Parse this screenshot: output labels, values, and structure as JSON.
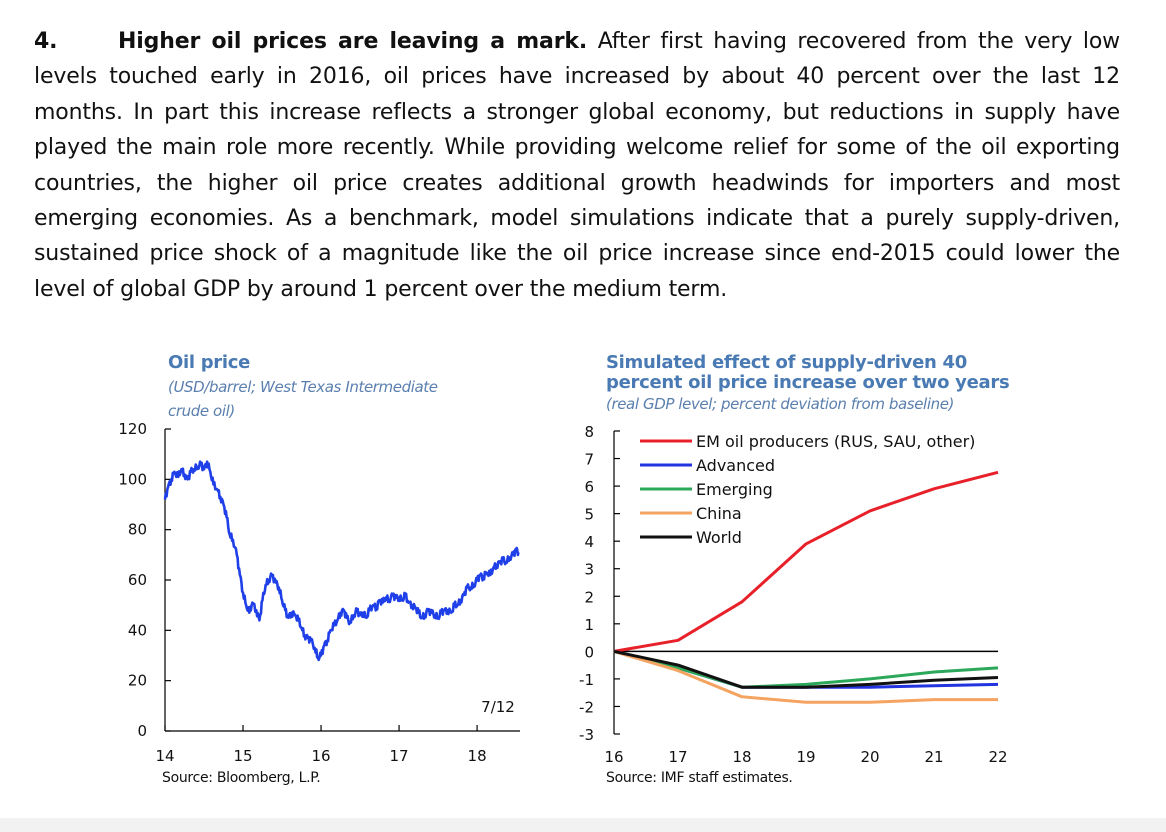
{
  "paragraph": {
    "number": "4.",
    "lead": "Higher oil prices are leaving a mark.",
    "body": "After first having recovered from the very low levels touched early in 2016, oil prices have increased by about 40 percent over the last 12 months. In part this increase reflects a stronger global economy, but reductions in supply have played the main role more recently. While providing welcome relief for some of the oil exporting countries, the higher oil price creates additional growth headwinds for importers and most emerging economies. As a benchmark, model simulations indicate that a purely supply-driven, sustained price shock of a magnitude like the oil price increase since end-2015 could lower the level of global GDP by around 1 percent over the medium term."
  },
  "chart_data": [
    {
      "type": "line",
      "title": "Oil price",
      "subtitle": "(USD/barrel; West Texas Intermediate crude oil)",
      "subtitle_lines": [
        "(USD/barrel; West Texas Intermediate",
        "crude oil)"
      ],
      "source": "Source: Bloomberg, L.P.",
      "annotation": "7/12",
      "xlabel": "",
      "ylabel": "",
      "x_ticks": [
        "14",
        "15",
        "16",
        "17",
        "18"
      ],
      "y_ticks": [
        "0",
        "20",
        "40",
        "60",
        "80",
        "100",
        "120"
      ],
      "xlim": [
        14.0,
        18.55
      ],
      "ylim": [
        0,
        120
      ],
      "color": "#1f3fe8",
      "series": [
        {
          "name": "WTI crude oil",
          "x": [
            14.0,
            14.04,
            14.08,
            14.12,
            14.17,
            14.21,
            14.25,
            14.29,
            14.33,
            14.37,
            14.42,
            14.46,
            14.5,
            14.54,
            14.58,
            14.62,
            14.67,
            14.71,
            14.75,
            14.79,
            14.83,
            14.87,
            14.92,
            14.96,
            15.0,
            15.04,
            15.08,
            15.12,
            15.17,
            15.21,
            15.25,
            15.29,
            15.33,
            15.37,
            15.42,
            15.46,
            15.5,
            15.54,
            15.58,
            15.62,
            15.67,
            15.71,
            15.75,
            15.79,
            15.83,
            15.87,
            15.92,
            15.96,
            16.0,
            16.04,
            16.08,
            16.12,
            16.17,
            16.21,
            16.25,
            16.29,
            16.33,
            16.37,
            16.42,
            16.46,
            16.5,
            16.54,
            16.58,
            16.62,
            16.67,
            16.71,
            16.75,
            16.79,
            16.83,
            16.87,
            16.92,
            16.96,
            17.0,
            17.04,
            17.08,
            17.12,
            17.17,
            17.21,
            17.25,
            17.29,
            17.33,
            17.37,
            17.42,
            17.46,
            17.5,
            17.54,
            17.58,
            17.62,
            17.67,
            17.71,
            17.75,
            17.79,
            17.83,
            17.87,
            17.92,
            17.96,
            18.0,
            18.04,
            18.08,
            18.12,
            18.17,
            18.21,
            18.25,
            18.29,
            18.33,
            18.37,
            18.42,
            18.46,
            18.5,
            18.53
          ],
          "values": [
            92,
            97,
            100,
            103,
            101,
            104,
            102,
            100,
            103,
            104,
            105,
            106,
            104,
            107,
            103,
            98,
            96,
            93,
            90,
            85,
            78,
            76,
            70,
            62,
            55,
            50,
            47,
            51,
            48,
            44,
            52,
            58,
            60,
            62,
            59,
            57,
            52,
            48,
            45,
            47,
            46,
            44,
            41,
            38,
            37,
            36,
            33,
            29,
            30,
            34,
            36,
            40,
            42,
            44,
            47,
            48,
            45,
            43,
            46,
            48,
            46,
            47,
            45,
            48,
            50,
            49,
            52,
            51,
            53,
            52,
            54,
            53,
            53,
            52,
            54,
            51,
            50,
            49,
            47,
            45,
            46,
            48,
            47,
            46,
            45,
            47,
            48,
            48,
            47,
            50,
            50,
            52,
            54,
            57,
            57,
            58,
            60,
            62,
            61,
            63,
            62,
            65,
            66,
            67,
            68,
            67,
            69,
            70,
            72,
            71
          ]
        }
      ]
    },
    {
      "type": "line",
      "title": "Simulated effect of supply-driven 40 percent oil price increase over two years",
      "title_lines": [
        "Simulated effect of supply-driven  40",
        "percent oil price increase over two years"
      ],
      "subtitle": "(real GDP level; percent deviation from baseline)",
      "source": "Source: IMF staff estimates.",
      "xlabel": "",
      "ylabel": "",
      "x": [
        16,
        17,
        18,
        19,
        20,
        21,
        22
      ],
      "x_ticks": [
        "16",
        "17",
        "18",
        "19",
        "20",
        "21",
        "22"
      ],
      "y_ticks": [
        "-3",
        "-2",
        "-1",
        "0",
        "1",
        "2",
        "3",
        "4",
        "5",
        "6",
        "7",
        "8"
      ],
      "xlim": [
        16,
        22
      ],
      "ylim": [
        -3,
        8
      ],
      "legend_position": "top-left",
      "series": [
        {
          "name": "EM oil producers (RUS, SAU, other)",
          "color": "#e8202a",
          "values": [
            0,
            0.4,
            1.8,
            3.9,
            5.1,
            5.9,
            6.5
          ]
        },
        {
          "name": "Advanced",
          "color": "#2233e0",
          "values": [
            0,
            -0.6,
            -1.3,
            -1.3,
            -1.3,
            -1.25,
            -1.2
          ]
        },
        {
          "name": "Emerging",
          "color": "#2ca85a",
          "values": [
            0,
            -0.6,
            -1.3,
            -1.2,
            -1.0,
            -0.75,
            -0.6
          ]
        },
        {
          "name": "China",
          "color": "#f4a460",
          "values": [
            0,
            -0.7,
            -1.65,
            -1.85,
            -1.85,
            -1.75,
            -1.75
          ]
        },
        {
          "name": "World",
          "color": "#111111",
          "values": [
            0,
            -0.5,
            -1.3,
            -1.3,
            -1.2,
            -1.05,
            -0.95
          ]
        }
      ]
    }
  ]
}
